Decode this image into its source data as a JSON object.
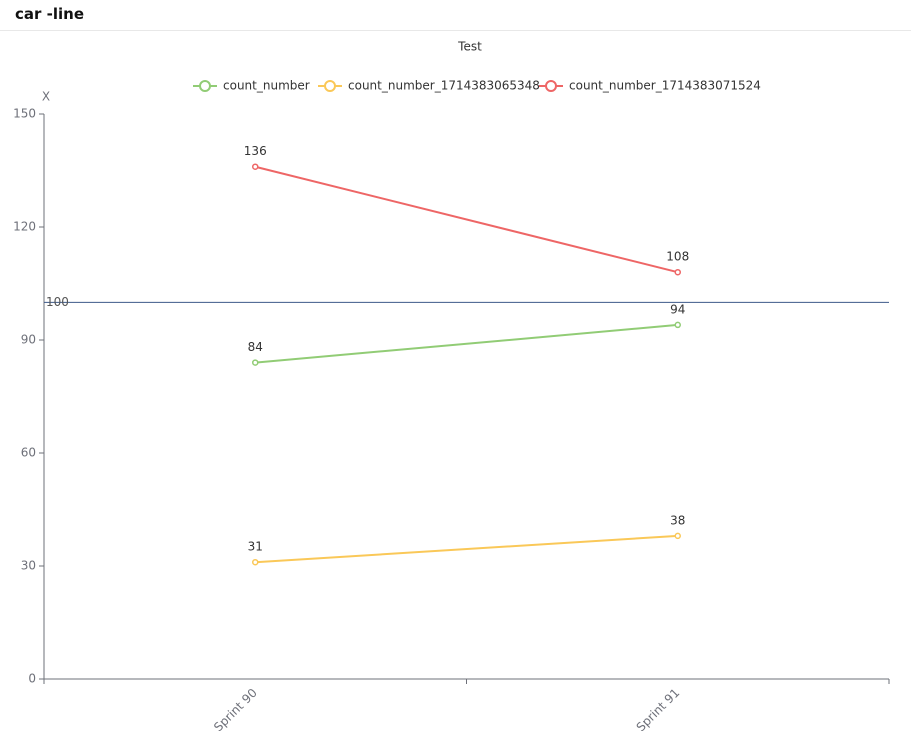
{
  "page": {
    "title": "car -line"
  },
  "chart_data": {
    "type": "line",
    "title": "Test",
    "y_label": "X",
    "categories": [
      "Sprint 90",
      "Sprint 91"
    ],
    "series": [
      {
        "name": "count_number",
        "color": "#91cc75",
        "values": [
          84,
          94
        ]
      },
      {
        "name": "count_number_1714383065348",
        "color": "#fac858",
        "values": [
          31,
          38
        ]
      },
      {
        "name": "count_number_1714383071524",
        "color": "#ee6666",
        "values": [
          136,
          108
        ]
      }
    ],
    "ylim": [
      0,
      150
    ],
    "yticks": [
      0,
      30,
      60,
      90,
      120,
      150
    ],
    "mark_line": 100,
    "mark_line_color": "#3d5a8a",
    "grid": false,
    "legend": "top"
  }
}
